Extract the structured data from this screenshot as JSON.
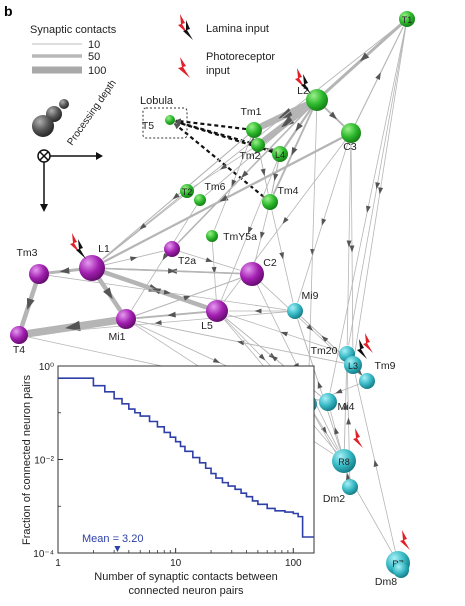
{
  "panel_label": "b",
  "legend": {
    "title": "Synaptic contacts",
    "items": [
      {
        "label": "10",
        "weight": 10
      },
      {
        "label": "50",
        "weight": 50
      },
      {
        "label": "100",
        "weight": 100
      }
    ],
    "lamina_input": "Lamina input",
    "photoreceptor_input_line1": "Photoreceptor",
    "photoreceptor_input_line2": "input"
  },
  "processing_depth_label": "Processing depth",
  "lobula_label": "Lobula",
  "colors": {
    "green": "#2db82d",
    "magenta": "#a21fb0",
    "cyan": "#36b8c4",
    "edge": "#b5b5b5",
    "arrow": "#555555",
    "inset_line": "#2e3fa8",
    "lightning_black": "#111111",
    "lightning_red": "#e0212a"
  },
  "neurons": [
    {
      "id": "T1",
      "label": "T1",
      "group": "green",
      "label_inside": true
    },
    {
      "id": "L2",
      "label": "L2",
      "group": "green"
    },
    {
      "id": "C3",
      "label": "C3",
      "group": "green"
    },
    {
      "id": "Tm1",
      "label": "Tm1",
      "group": "green"
    },
    {
      "id": "Tm2",
      "label": "Tm2",
      "group": "green"
    },
    {
      "id": "L4",
      "label": "L4",
      "group": "green",
      "label_inside": true
    },
    {
      "id": "T5",
      "label": "T5",
      "group": "green"
    },
    {
      "id": "T2",
      "label": "T2",
      "group": "green",
      "label_inside": true
    },
    {
      "id": "Tm6",
      "label": "Tm6",
      "group": "green"
    },
    {
      "id": "Tm4",
      "label": "Tm4",
      "group": "green"
    },
    {
      "id": "TmY5a",
      "label": "TmY5a",
      "group": "green"
    },
    {
      "id": "L1",
      "label": "L1",
      "group": "magenta"
    },
    {
      "id": "Tm3",
      "label": "Tm3",
      "group": "magenta"
    },
    {
      "id": "T2a",
      "label": "T2a",
      "group": "magenta"
    },
    {
      "id": "C2",
      "label": "C2",
      "group": "magenta"
    },
    {
      "id": "L5",
      "label": "L5",
      "group": "magenta"
    },
    {
      "id": "Mi1",
      "label": "Mi1",
      "group": "magenta"
    },
    {
      "id": "T4",
      "label": "T4",
      "group": "magenta"
    },
    {
      "id": "Mi9",
      "label": "Mi9",
      "group": "cyan"
    },
    {
      "id": "Tm20",
      "label": "Tm20",
      "group": "cyan"
    },
    {
      "id": "L3",
      "label": "L3",
      "group": "cyan",
      "label_inside": true
    },
    {
      "id": "Tm9",
      "label": "Tm9",
      "group": "cyan"
    },
    {
      "id": "Mi15",
      "label": "Mi15",
      "group": "cyan"
    },
    {
      "id": "Mi4",
      "label": "Mi4",
      "group": "cyan"
    },
    {
      "id": "R8",
      "label": "R8",
      "group": "cyan",
      "label_inside": true
    },
    {
      "id": "Dm2",
      "label": "Dm2",
      "group": "cyan"
    },
    {
      "id": "R7",
      "label": "R7",
      "group": "cyan",
      "label_inside": true
    },
    {
      "id": "Dm8",
      "label": "Dm8",
      "group": "cyan"
    }
  ],
  "edges": [
    {
      "from": "L2",
      "to": "Tm1",
      "weight": 90
    },
    {
      "from": "L2",
      "to": "Tm2",
      "weight": 80
    },
    {
      "from": "L2",
      "to": "L4",
      "weight": 30
    },
    {
      "from": "L2",
      "to": "C3",
      "weight": 25
    },
    {
      "from": "T1",
      "to": "L2",
      "weight": 40
    },
    {
      "from": "C3",
      "to": "T1",
      "weight": 15
    },
    {
      "from": "T1",
      "to": "L1",
      "weight": 12
    },
    {
      "from": "L4",
      "to": "Tm2",
      "weight": 20
    },
    {
      "from": "Tm1",
      "to": "T5",
      "weight": 10,
      "dashed": true
    },
    {
      "from": "Tm2",
      "to": "T5",
      "weight": 10,
      "dashed": true
    },
    {
      "from": "L4",
      "to": "T5",
      "weight": 10,
      "dashed": true
    },
    {
      "from": "Tm4",
      "to": "T5",
      "weight": 10,
      "dashed": true
    },
    {
      "from": "L1",
      "to": "Mi1",
      "weight": 60
    },
    {
      "from": "L1",
      "to": "Tm3",
      "weight": 40
    },
    {
      "from": "L1",
      "to": "L5",
      "weight": 60
    },
    {
      "from": "L5",
      "to": "L1",
      "weight": 30
    },
    {
      "from": "Mi1",
      "to": "T4",
      "weight": 100
    },
    {
      "from": "Tm3",
      "to": "T4",
      "weight": 60
    },
    {
      "from": "C2",
      "to": "L1",
      "weight": 20
    },
    {
      "from": "L5",
      "to": "Mi1",
      "weight": 25
    },
    {
      "from": "C3",
      "to": "L1",
      "weight": 30
    },
    {
      "from": "L2",
      "to": "T2a",
      "weight": 20
    },
    {
      "from": "Tm1",
      "to": "L1",
      "weight": 15
    },
    {
      "from": "Mi1",
      "to": "C2",
      "weight": 15
    },
    {
      "from": "L1",
      "to": "T2a",
      "weight": 12
    },
    {
      "from": "Mi9",
      "to": "T4",
      "weight": 10
    },
    {
      "from": "R8",
      "to": "Mi9",
      "weight": 12
    },
    {
      "from": "L3",
      "to": "Mi1",
      "weight": 12
    },
    {
      "from": "L3",
      "to": "Mi9",
      "weight": 12
    },
    {
      "from": "L3",
      "to": "Tm20",
      "weight": 20
    },
    {
      "from": "L3",
      "to": "Tm9",
      "weight": 10
    },
    {
      "from": "R8",
      "to": "Mi4",
      "weight": 10
    },
    {
      "from": "R7",
      "to": "Dm8",
      "weight": 15
    },
    {
      "from": "Dm8",
      "to": "R7",
      "weight": 10
    },
    {
      "from": "R8",
      "to": "Tm20",
      "weight": 12
    },
    {
      "from": "Mi4",
      "to": "T4",
      "weight": 10
    },
    {
      "from": "Mi15",
      "to": "R8",
      "weight": 10
    },
    {
      "from": "T1",
      "to": "L3",
      "weight": 10
    },
    {
      "from": "T1",
      "to": "Mi4",
      "weight": 10
    },
    {
      "from": "C3",
      "to": "Tm20",
      "weight": 10
    },
    {
      "from": "C3",
      "to": "L3",
      "weight": 10
    },
    {
      "from": "L2",
      "to": "Mi15",
      "weight": 10
    },
    {
      "from": "L2",
      "to": "Tm4",
      "weight": 25
    },
    {
      "from": "L4",
      "to": "Tm4",
      "weight": 15
    },
    {
      "from": "Tm2",
      "to": "Tm4",
      "weight": 12
    },
    {
      "from": "L2",
      "to": "Tm6",
      "weight": 12
    },
    {
      "from": "C2",
      "to": "Tm9",
      "weight": 10
    },
    {
      "from": "L5",
      "to": "Mi4",
      "weight": 10
    },
    {
      "from": "L5",
      "to": "Mi15",
      "weight": 10
    },
    {
      "from": "Mi1",
      "to": "Mi15",
      "weight": 10
    },
    {
      "from": "Mi1",
      "to": "R8",
      "weight": 10
    },
    {
      "from": "C2",
      "to": "R8",
      "weight": 10
    },
    {
      "from": "Tm3",
      "to": "Mi9",
      "weight": 10
    },
    {
      "from": "R7",
      "to": "Mi15",
      "weight": 10
    },
    {
      "from": "R7",
      "to": "L3",
      "weight": 10
    },
    {
      "from": "Dm2",
      "to": "R8",
      "weight": 10
    },
    {
      "from": "Dm2",
      "to": "Tm20",
      "weight": 10
    },
    {
      "from": "Tm9",
      "to": "Mi15",
      "weight": 10
    },
    {
      "from": "TmY5a",
      "to": "L5",
      "weight": 10
    },
    {
      "from": "T2",
      "to": "L1",
      "weight": 12
    },
    {
      "from": "Tm6",
      "to": "Mi1",
      "weight": 10
    },
    {
      "from": "Tm4",
      "to": "Mi9",
      "weight": 10
    },
    {
      "from": "C3",
      "to": "L5",
      "weight": 10
    },
    {
      "from": "Tm4",
      "to": "C2",
      "weight": 10
    },
    {
      "from": "Tm2",
      "to": "T2",
      "weight": 10
    },
    {
      "from": "Tm1",
      "to": "TmY5a",
      "weight": 10
    },
    {
      "from": "L4",
      "to": "L5",
      "weight": 10
    },
    {
      "from": "C3",
      "to": "Mi9",
      "weight": 10
    },
    {
      "from": "T1",
      "to": "Tm20",
      "weight": 10
    },
    {
      "from": "Tm20",
      "to": "L5",
      "weight": 10
    },
    {
      "from": "R8",
      "to": "L5",
      "weight": 10
    },
    {
      "from": "Mi4",
      "to": "L5",
      "weight": 10
    },
    {
      "from": "T2a",
      "to": "C2",
      "weight": 10
    },
    {
      "from": "L1",
      "to": "C2",
      "weight": 20
    },
    {
      "from": "Mi9",
      "to": "L5",
      "weight": 10
    }
  ],
  "inset": {
    "ylabel": "Fraction of connected neuron pairs",
    "xlabel_line1": "Number of synaptic contacts between",
    "xlabel_line2": "connected neuron pairs",
    "mean_label": "Mean = 3.20",
    "y_ticks": [
      {
        "value": 1,
        "label": "10⁰"
      },
      {
        "value": 0.01,
        "label": "10⁻²"
      },
      {
        "value": 0.0001,
        "label": "10⁻⁴"
      }
    ],
    "x_ticks": [
      {
        "value": 1,
        "label": "1"
      },
      {
        "value": 10,
        "label": "10"
      },
      {
        "value": 100,
        "label": "100"
      }
    ]
  },
  "chart_data": {
    "type": "line",
    "scale": "log-log",
    "xlabel": "Number of synaptic contacts between connected neuron pairs",
    "ylabel": "Fraction of connected neuron pairs",
    "xlim": [
      1,
      150
    ],
    "ylim": [
      0.0001,
      1
    ],
    "mean": 3.2,
    "series": [
      {
        "step": true,
        "x": [
          1,
          2,
          2.5,
          3,
          3.5,
          4,
          4.5,
          5,
          6,
          7,
          8,
          9,
          10,
          11,
          12,
          14,
          16,
          18,
          20,
          22,
          25,
          28,
          32,
          36,
          40,
          45,
          50,
          60,
          70,
          85,
          100,
          110,
          120,
          140
        ],
        "y": [
          0.55,
          0.38,
          0.28,
          0.2,
          0.155,
          0.12,
          0.1,
          0.085,
          0.065,
          0.05,
          0.038,
          0.03,
          0.024,
          0.019,
          0.015,
          0.011,
          0.0085,
          0.0065,
          0.005,
          0.004,
          0.0032,
          0.0027,
          0.0023,
          0.0019,
          0.0016,
          0.0013,
          0.0011,
          0.0009,
          0.0008,
          0.00075,
          0.0007,
          0.0006,
          0.00022,
          0.00022
        ]
      }
    ]
  }
}
